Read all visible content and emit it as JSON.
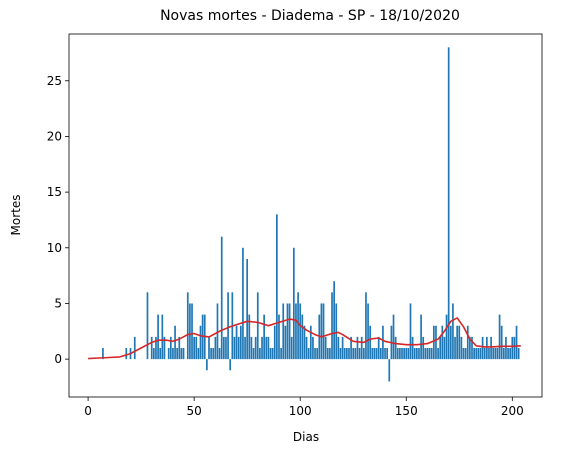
{
  "chart_data": {
    "type": "bar",
    "title": "Novas mortes - Diadema - SP - 18/10/2020",
    "xlabel": "Dias",
    "ylabel": "Mortes",
    "xlim": [
      -9,
      214
    ],
    "ylim": [
      -3.4,
      29.2
    ],
    "xticks": [
      0,
      50,
      100,
      150,
      200
    ],
    "yticks": [
      0,
      5,
      10,
      15,
      20,
      25
    ],
    "grid": false,
    "bar_color": "#1f77b4",
    "line_color": "#d62728",
    "series": [
      {
        "type": "bar",
        "x": [
          7,
          18,
          20,
          22,
          28,
          30,
          31,
          32,
          33,
          34,
          35,
          36,
          38,
          39,
          40,
          41,
          42,
          43,
          44,
          45,
          47,
          48,
          49,
          50,
          51,
          52,
          53,
          54,
          55,
          56,
          57,
          58,
          59,
          60,
          61,
          62,
          63,
          64,
          65,
          66,
          67,
          68,
          69,
          70,
          71,
          72,
          73,
          74,
          75,
          76,
          77,
          78,
          79,
          80,
          81,
          82,
          83,
          84,
          85,
          86,
          87,
          88,
          89,
          90,
          91,
          92,
          93,
          94,
          95,
          96,
          97,
          98,
          99,
          100,
          101,
          102,
          103,
          104,
          105,
          106,
          107,
          108,
          109,
          110,
          111,
          112,
          113,
          114,
          115,
          116,
          117,
          118,
          119,
          120,
          121,
          122,
          123,
          124,
          125,
          126,
          127,
          128,
          129,
          130,
          131,
          132,
          133,
          134,
          135,
          136,
          137,
          138,
          139,
          140,
          141,
          142,
          143,
          144,
          145,
          146,
          147,
          148,
          149,
          150,
          151,
          152,
          153,
          154,
          155,
          156,
          157,
          158,
          159,
          160,
          161,
          162,
          163,
          164,
          165,
          166,
          167,
          168,
          169,
          170,
          171,
          172,
          173,
          174,
          175,
          176,
          177,
          178,
          179,
          180,
          181,
          182,
          183,
          184,
          185,
          186,
          187,
          188,
          189,
          190,
          191,
          192,
          193,
          194,
          195,
          196,
          197,
          198,
          199,
          200,
          201,
          202,
          203
        ],
        "values": [
          1,
          1,
          1,
          2,
          6,
          2,
          1,
          2,
          4,
          1,
          4,
          2,
          1,
          2,
          1,
          3,
          1,
          2,
          1,
          1,
          6,
          5,
          5,
          2,
          2,
          1,
          3,
          4,
          4,
          -1,
          2,
          1,
          1,
          2,
          5,
          1,
          11,
          2,
          2,
          6,
          -1,
          6,
          2,
          3,
          2,
          3,
          10,
          2,
          9,
          4,
          2,
          1,
          2,
          6,
          1,
          2,
          4,
          2,
          2,
          1,
          1,
          3,
          13,
          4,
          1,
          5,
          3,
          5,
          5,
          2,
          10,
          5,
          6,
          5,
          4,
          3,
          2,
          1,
          3,
          2,
          1,
          1,
          4,
          5,
          5,
          2,
          1,
          1,
          6,
          7,
          5,
          2,
          1,
          2,
          1,
          1,
          1,
          2,
          1,
          1,
          2,
          1,
          2,
          1,
          6,
          5,
          3,
          1,
          1,
          1,
          2,
          1,
          3,
          1,
          1,
          -2,
          3,
          4,
          2,
          1,
          1,
          1,
          1,
          1,
          1,
          5,
          2,
          1,
          1,
          1,
          4,
          2,
          1,
          1,
          1,
          1,
          3,
          3,
          1,
          2,
          3,
          2,
          4,
          28,
          3,
          5,
          2,
          3,
          3,
          2,
          1,
          1,
          3,
          2,
          2,
          1,
          1,
          1,
          1,
          2,
          1,
          2,
          1,
          2,
          1,
          1,
          1,
          4,
          3,
          1,
          2,
          1,
          1,
          2,
          2,
          3,
          1
        ]
      },
      {
        "type": "line",
        "x": [
          0,
          5,
          10,
          15,
          20,
          25,
          30,
          33,
          37,
          40,
          43,
          47,
          50,
          53,
          57,
          60,
          63,
          67,
          70,
          75,
          80,
          85,
          90,
          95,
          98,
          100,
          103,
          107,
          110,
          115,
          118,
          120,
          125,
          130,
          133,
          137,
          140,
          145,
          150,
          155,
          160,
          165,
          168,
          171,
          174,
          177,
          180,
          183,
          187,
          190,
          195,
          200,
          204
        ],
        "values": [
          0.05,
          0.1,
          0.15,
          0.2,
          0.5,
          1.0,
          1.5,
          1.7,
          1.7,
          1.6,
          1.8,
          2.2,
          2.3,
          2.1,
          2.0,
          2.3,
          2.6,
          2.9,
          3.1,
          3.4,
          3.3,
          3.0,
          3.3,
          3.6,
          3.5,
          3.0,
          2.6,
          2.2,
          2.0,
          2.3,
          2.4,
          2.2,
          1.6,
          1.5,
          1.8,
          1.9,
          1.6,
          1.4,
          1.3,
          1.3,
          1.4,
          1.8,
          2.5,
          3.4,
          3.7,
          2.9,
          1.8,
          1.2,
          1.1,
          1.1,
          1.15,
          1.15,
          1.2
        ]
      }
    ]
  }
}
